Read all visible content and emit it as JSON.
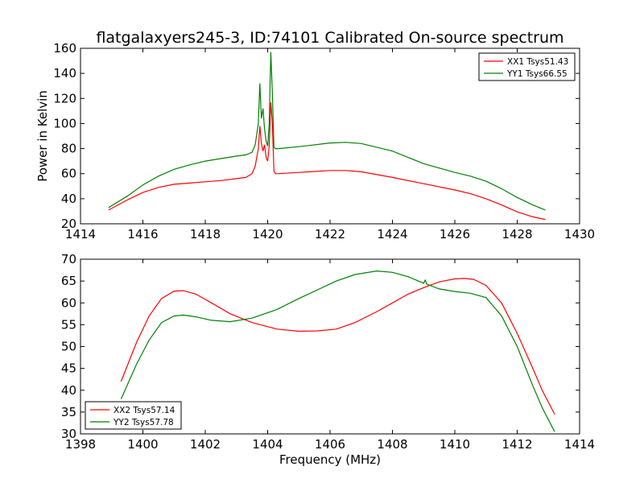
{
  "chart_data": [
    {
      "type": "line",
      "title": "flatgalaxyers245-3, ID:74101 Calibrated On-source spectrum",
      "xlabel": "",
      "ylabel": "Power in Kelvin",
      "xlim": [
        1414,
        1430
      ],
      "ylim": [
        20,
        160
      ],
      "xticks": [
        1414,
        1416,
        1418,
        1420,
        1422,
        1424,
        1426,
        1428,
        1430
      ],
      "yticks": [
        20,
        40,
        60,
        80,
        100,
        120,
        140,
        160
      ],
      "grid": false,
      "legend": "top-right",
      "series": [
        {
          "name": "XX1 Tsys51.43",
          "color": "#ff0000",
          "x": [
            1414.9,
            1415.5,
            1416.0,
            1416.5,
            1417.0,
            1417.5,
            1418.0,
            1418.5,
            1419.0,
            1419.3,
            1419.5,
            1419.6,
            1419.7,
            1419.75,
            1419.8,
            1419.85,
            1419.9,
            1419.95,
            1420.0,
            1420.05,
            1420.1,
            1420.15,
            1420.2,
            1420.25,
            1420.35,
            1421.0,
            1422.0,
            1422.5,
            1423.0,
            1424.0,
            1425.0,
            1426.0,
            1426.5,
            1427.0,
            1427.5,
            1428.0,
            1428.5,
            1428.9
          ],
          "values": [
            31,
            39,
            45,
            49,
            51.5,
            52.5,
            53.5,
            54.5,
            56,
            57,
            60,
            66,
            80,
            98,
            84,
            78,
            83,
            73,
            70,
            82,
            117,
            100,
            62,
            60,
            60,
            61,
            62.5,
            62.5,
            61.5,
            57,
            52,
            47,
            44,
            40,
            35,
            29.5,
            25.5,
            23.5
          ]
        },
        {
          "name": "YY1 Tsys66.55",
          "color": "#008000",
          "x": [
            1414.9,
            1415.5,
            1416.0,
            1416.5,
            1417.0,
            1417.5,
            1418.0,
            1418.5,
            1419.0,
            1419.3,
            1419.5,
            1419.6,
            1419.7,
            1419.75,
            1419.8,
            1419.85,
            1419.9,
            1419.95,
            1420.0,
            1420.05,
            1420.1,
            1420.15,
            1420.2,
            1420.25,
            1420.35,
            1421.0,
            1422.0,
            1422.5,
            1423.0,
            1424.0,
            1425.0,
            1426.0,
            1426.5,
            1427.0,
            1427.5,
            1428.0,
            1428.5,
            1428.9
          ],
          "values": [
            33,
            42,
            51,
            58,
            63.5,
            67,
            70,
            72,
            74,
            75,
            77,
            83,
            100,
            132,
            104,
            112,
            96,
            86,
            82,
            100,
            157,
            125,
            81,
            80,
            80,
            81.5,
            84.5,
            85,
            84,
            78,
            68,
            61,
            58,
            54,
            48,
            41,
            35,
            31
          ]
        }
      ]
    },
    {
      "type": "line",
      "title": "",
      "xlabel": "Frequency (MHz)",
      "ylabel": "",
      "xlim": [
        1398,
        1414
      ],
      "ylim": [
        30,
        70
      ],
      "xticks": [
        1398,
        1400,
        1402,
        1404,
        1406,
        1408,
        1410,
        1412,
        1414
      ],
      "yticks": [
        30,
        35,
        40,
        45,
        50,
        55,
        60,
        65,
        70
      ],
      "grid": false,
      "legend": "bottom-left",
      "series": [
        {
          "name": "XX2 Tsys57.14",
          "color": "#ff0000",
          "x": [
            1399.3,
            1399.8,
            1400.2,
            1400.6,
            1401.0,
            1401.3,
            1401.7,
            1402.2,
            1402.8,
            1403.5,
            1404.3,
            1405.0,
            1405.6,
            1406.2,
            1406.8,
            1407.5,
            1408.0,
            1408.5,
            1409.0,
            1409.5,
            1410.0,
            1410.3,
            1410.6,
            1411.0,
            1411.5,
            1412.0,
            1412.5,
            1412.8,
            1413.2
          ],
          "values": [
            42,
            51,
            57,
            61,
            62.7,
            62.8,
            62,
            60,
            57.5,
            55.5,
            54,
            53.5,
            53.6,
            54,
            55.5,
            58,
            60,
            62,
            63.5,
            64.8,
            65.5,
            65.6,
            65.4,
            64,
            60,
            53,
            45,
            40,
            34.5
          ]
        },
        {
          "name": "YY2 Tsys57.78",
          "color": "#008000",
          "x": [
            1399.3,
            1399.8,
            1400.2,
            1400.6,
            1401.0,
            1401.3,
            1401.7,
            1402.2,
            1402.8,
            1403.5,
            1404.3,
            1405.0,
            1405.6,
            1406.2,
            1406.8,
            1407.5,
            1408.0,
            1408.5,
            1409.0,
            1409.05,
            1409.1,
            1409.5,
            1410.0,
            1410.5,
            1411.0,
            1411.5,
            1412.0,
            1412.5,
            1412.8,
            1413.2
          ],
          "values": [
            38,
            46,
            51.5,
            55.5,
            57,
            57.2,
            56.8,
            56,
            55.7,
            56.5,
            58.5,
            61,
            63,
            65,
            66.5,
            67.3,
            67,
            66,
            64.5,
            65.2,
            64.3,
            63.2,
            62.6,
            62.2,
            61.2,
            57,
            50,
            41,
            36,
            30.5
          ]
        }
      ]
    }
  ]
}
